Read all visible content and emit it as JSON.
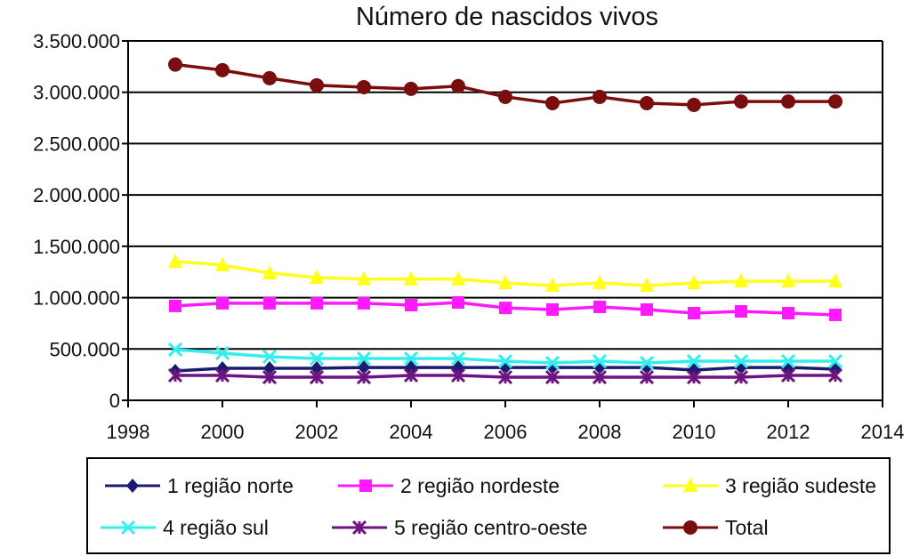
{
  "chart_data": {
    "type": "line",
    "title": "Número de nascidos vivos",
    "xlabel": "",
    "ylabel": "",
    "xlim": [
      1998,
      2014
    ],
    "ylim": [
      0,
      3500000
    ],
    "x_ticks": [
      1998,
      2000,
      2002,
      2004,
      2006,
      2008,
      2010,
      2012,
      2014
    ],
    "x_tick_labels": [
      "1998",
      "2000",
      "2002",
      "2004",
      "2006",
      "2008",
      "2010",
      "2012",
      "2014"
    ],
    "y_ticks": [
      0,
      500000,
      1000000,
      1500000,
      2000000,
      2500000,
      3000000,
      3500000
    ],
    "y_tick_labels": [
      "0",
      "500.000",
      "1.000.000",
      "1.500.000",
      "2.000.000",
      "2.500.000",
      "3.000.000",
      "3.500.000"
    ],
    "grid": "horizontal",
    "legend_position": "bottom",
    "x": [
      1999,
      2000,
      2001,
      2002,
      2003,
      2004,
      2005,
      2006,
      2007,
      2008,
      2009,
      2010,
      2011,
      2012,
      2013
    ],
    "series": [
      {
        "name": "1 região norte",
        "color": "#1a1a6e",
        "marker": "diamond",
        "values": [
          286000,
          312000,
          312000,
          312000,
          320000,
          320000,
          320000,
          320000,
          320000,
          320000,
          320000,
          295000,
          320000,
          320000,
          303000
        ]
      },
      {
        "name": "2 região nordeste",
        "color": "#ff19ff",
        "marker": "square",
        "values": [
          919000,
          945000,
          945000,
          945000,
          945000,
          927000,
          953000,
          900000,
          884000,
          910000,
          884000,
          849000,
          866000,
          849000,
          832000
        ]
      },
      {
        "name": "3 região sudeste",
        "color": "#ffff19",
        "marker": "triangle",
        "values": [
          1352000,
          1317000,
          1239000,
          1196000,
          1180000,
          1180000,
          1180000,
          1144000,
          1118000,
          1144000,
          1118000,
          1144000,
          1160000,
          1160000,
          1160000
        ]
      },
      {
        "name": "4 região sul",
        "color": "#33eeee",
        "marker": "x",
        "values": [
          494000,
          460000,
          425000,
          407000,
          407000,
          407000,
          407000,
          381000,
          364000,
          381000,
          364000,
          381000,
          381000,
          381000,
          381000
        ]
      },
      {
        "name": "5 região centro-oeste",
        "color": "#6e1482",
        "marker": "star",
        "values": [
          243000,
          243000,
          225000,
          225000,
          225000,
          243000,
          243000,
          225000,
          225000,
          225000,
          225000,
          225000,
          225000,
          243000,
          243000
        ]
      },
      {
        "name": "Total",
        "color": "#7a0e0e",
        "marker": "circle",
        "values": [
          3270000,
          3215000,
          3137000,
          3068000,
          3050000,
          3033000,
          3060000,
          2955000,
          2894000,
          2955000,
          2894000,
          2877000,
          2910000,
          2910000,
          2910000
        ]
      }
    ]
  }
}
